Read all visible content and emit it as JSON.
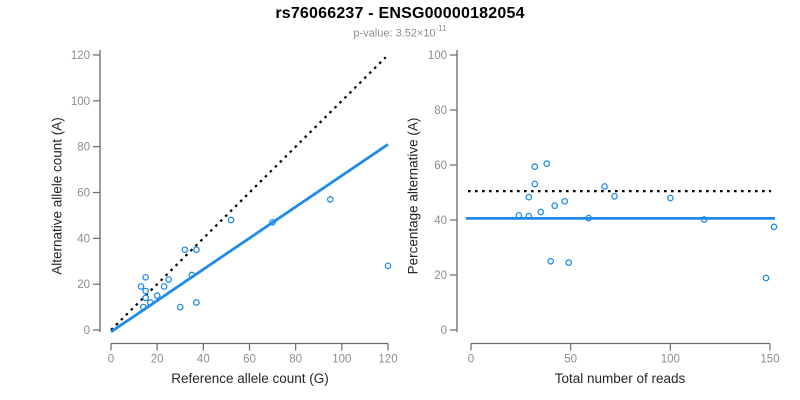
{
  "header": {
    "title": "rs76066237 - ENSG00000182054",
    "subtitle_main": "p-value: 3.52×10",
    "subtitle_exponent": "-11"
  },
  "colors": {
    "accent_blue": "#1F8CEC",
    "dotted_black": "#000000",
    "axis_gray": "#696969",
    "tick_label_gray": "#8c8c8c",
    "subtitle_gray": "#8c8c8c"
  },
  "chart_data": [
    {
      "type": "scatter",
      "name": "allele-counts-scatter",
      "xlabel": "Reference allele count (G)",
      "ylabel": "Alternative allele count (A)",
      "xlim": [
        0,
        120
      ],
      "ylim": [
        0,
        120
      ],
      "xticks": [
        0,
        20,
        40,
        60,
        80,
        100,
        120
      ],
      "yticks": [
        0,
        20,
        40,
        60,
        80,
        100,
        120
      ],
      "grid": false,
      "points": [
        [
          14,
          10
        ],
        [
          17,
          12
        ],
        [
          15,
          14
        ],
        [
          13,
          19
        ],
        [
          15,
          17
        ],
        [
          20,
          15
        ],
        [
          15,
          23
        ],
        [
          30,
          10
        ],
        [
          23,
          19
        ],
        [
          25,
          22
        ],
        [
          37,
          12
        ],
        [
          35,
          24
        ],
        [
          32,
          35
        ],
        [
          37,
          35
        ],
        [
          52,
          48
        ],
        [
          70,
          47
        ],
        [
          120,
          28
        ],
        [
          95,
          57
        ]
      ],
      "lines": [
        {
          "name": "identity-line",
          "style": "dotted",
          "color": "#000000",
          "x": [
            0,
            119
          ],
          "y": [
            0,
            119
          ]
        },
        {
          "name": "fit-line",
          "style": "solid",
          "color": "#1F8CEC",
          "x": [
            0,
            120
          ],
          "y": [
            -0.8,
            81
          ]
        }
      ]
    },
    {
      "type": "scatter",
      "name": "percentage-vs-reads-scatter",
      "xlabel": "Total number of reads",
      "ylabel": "Percentage alternative (A)",
      "xlim": [
        0,
        150
      ],
      "ylim": [
        0,
        100
      ],
      "xticks": [
        0,
        50,
        100,
        150
      ],
      "yticks": [
        0,
        20,
        40,
        60,
        80,
        100
      ],
      "grid": false,
      "points": [
        [
          24,
          41.7
        ],
        [
          29,
          41.4
        ],
        [
          29,
          48.3
        ],
        [
          32,
          59.4
        ],
        [
          32,
          53.1
        ],
        [
          35,
          42.9
        ],
        [
          38,
          60.5
        ],
        [
          40,
          25.0
        ],
        [
          42,
          45.2
        ],
        [
          47,
          46.8
        ],
        [
          49,
          24.5
        ],
        [
          59,
          40.7
        ],
        [
          67,
          52.2
        ],
        [
          72,
          48.6
        ],
        [
          100,
          48.0
        ],
        [
          117,
          40.2
        ],
        [
          148,
          18.9
        ],
        [
          152,
          37.5
        ]
      ],
      "lines": [
        {
          "name": "expected-50pct-line",
          "style": "dotted",
          "color": "#000000",
          "x": [
            -1.5,
            150.5
          ],
          "y": [
            50.5,
            50.5
          ]
        },
        {
          "name": "fit-line",
          "style": "solid",
          "color": "#1F8CEC",
          "x": [
            -2.5,
            152.5
          ],
          "y": [
            40.6,
            40.6
          ]
        }
      ]
    }
  ]
}
